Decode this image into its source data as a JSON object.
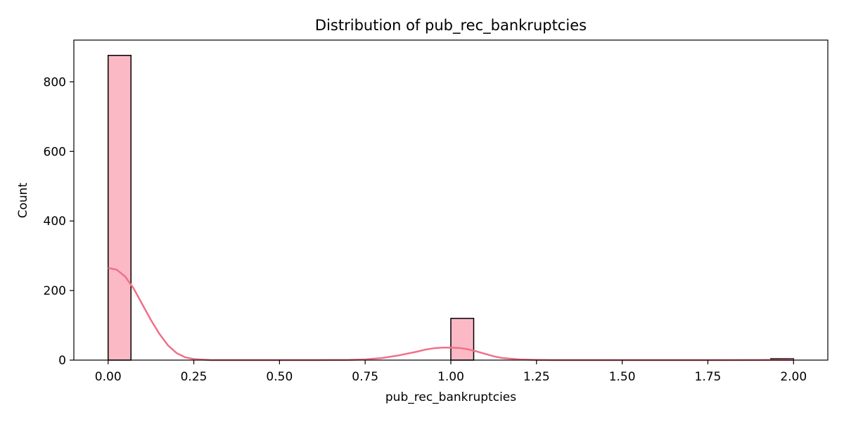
{
  "chart_data": {
    "type": "bar",
    "title": "Distribution of pub_rec_bankruptcies",
    "xlabel": "pub_rec_bankruptcies",
    "ylabel": "Count",
    "xlim": [
      -0.1,
      2.1
    ],
    "ylim": [
      0,
      920
    ],
    "grid": false,
    "legend": "none",
    "bar_fill": "#fbb9c6",
    "bar_edge": "#000000",
    "kde_color": "#f07088",
    "bin_width": 0.0667,
    "bins": [
      {
        "x0": 0.0,
        "x1": 0.0667,
        "count": 876
      },
      {
        "x0": 1.0,
        "x1": 1.0667,
        "count": 120
      },
      {
        "x0": 1.9333,
        "x1": 2.0,
        "count": 4
      }
    ],
    "x_ticks": [
      {
        "value": 0.0,
        "label": "0.00"
      },
      {
        "value": 0.25,
        "label": "0.25"
      },
      {
        "value": 0.5,
        "label": "0.50"
      },
      {
        "value": 0.75,
        "label": "0.75"
      },
      {
        "value": 1.0,
        "label": "1.00"
      },
      {
        "value": 1.25,
        "label": "1.25"
      },
      {
        "value": 1.5,
        "label": "1.50"
      },
      {
        "value": 1.75,
        "label": "1.75"
      },
      {
        "value": 2.0,
        "label": "2.00"
      }
    ],
    "y_ticks": [
      {
        "value": 0,
        "label": "0"
      },
      {
        "value": 200,
        "label": "200"
      },
      {
        "value": 400,
        "label": "400"
      },
      {
        "value": 600,
        "label": "600"
      },
      {
        "value": 800,
        "label": "800"
      }
    ],
    "kde": {
      "x": [
        0.0,
        0.025,
        0.05,
        0.075,
        0.1,
        0.125,
        0.15,
        0.175,
        0.2,
        0.225,
        0.25,
        0.3,
        0.4,
        0.5,
        0.6,
        0.7,
        0.75,
        0.8,
        0.85,
        0.9,
        0.925,
        0.95,
        0.975,
        1.0,
        1.025,
        1.05,
        1.075,
        1.1,
        1.125,
        1.15,
        1.2,
        1.25,
        1.3,
        1.4,
        1.5,
        1.6,
        1.7,
        1.8,
        1.9,
        2.0
      ],
      "y": [
        265,
        260,
        240,
        205,
        160,
        115,
        75,
        42,
        20,
        8,
        3,
        0,
        0,
        0,
        0,
        0.5,
        2,
        6,
        14,
        24,
        30,
        34,
        36,
        36,
        35,
        31,
        25,
        18,
        11,
        6,
        2,
        0.5,
        0,
        0,
        0,
        0,
        0,
        0,
        0.3,
        1
      ]
    }
  }
}
